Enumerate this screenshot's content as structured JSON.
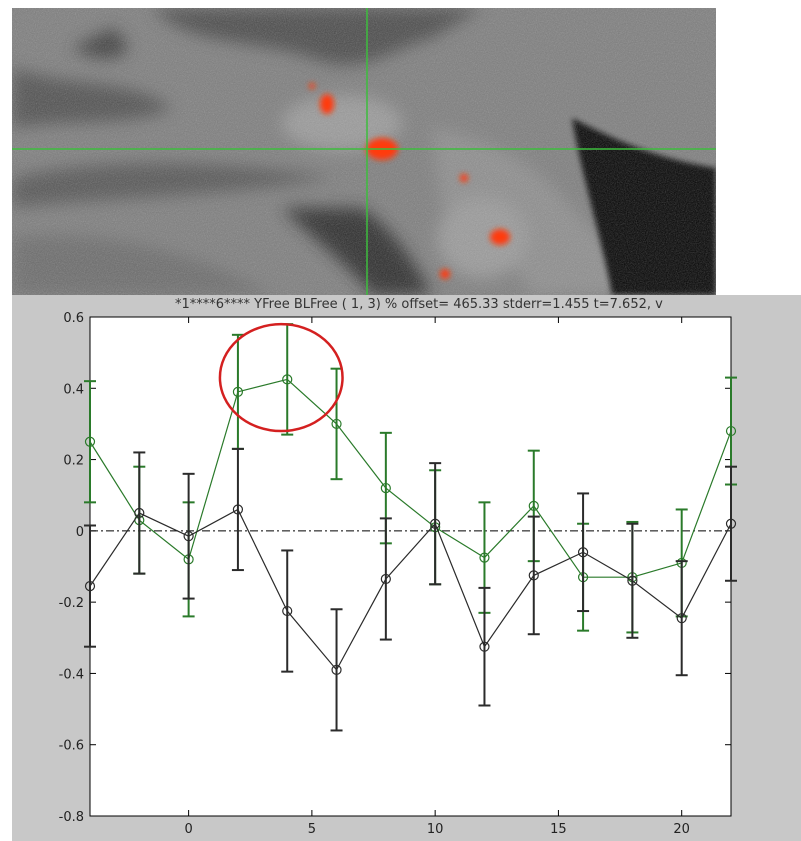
{
  "plot_title": "*1****6**** YFree BLFree ( 1, 3) % offset= 465.33 stderr=1.455  t=7.652, v",
  "colors": {
    "green_series": "#2a7a2a",
    "black_series": "#2b2b2b",
    "highlight_circle": "#d42020",
    "activation": "#ff3a10",
    "crosshair": "#3dbd3d"
  },
  "chart_data": {
    "type": "line",
    "xlim": [
      -4,
      22
    ],
    "ylim": [
      -0.8,
      0.6
    ],
    "xticks": [
      0,
      5,
      10,
      15,
      20
    ],
    "yticks": [
      -0.8,
      -0.6,
      -0.4,
      -0.2,
      0,
      0.2,
      0.4,
      0.6
    ],
    "x": [
      -4,
      -2,
      0,
      2,
      4,
      6,
      8,
      10,
      12,
      14,
      16,
      18,
      20,
      22
    ],
    "series": [
      {
        "color": "#2a7a2a",
        "values": [
          0.25,
          0.03,
          -0.08,
          0.39,
          0.425,
          0.3,
          0.12,
          0.01,
          -0.075,
          0.07,
          -0.13,
          -0.13,
          -0.09,
          0.28
        ],
        "errors": [
          0.17,
          0.15,
          0.16,
          0.16,
          0.155,
          0.155,
          0.155,
          0.16,
          0.155,
          0.155,
          0.15,
          0.155,
          0.15,
          0.15
        ]
      },
      {
        "color": "#2b2b2b",
        "values": [
          -0.155,
          0.05,
          -0.015,
          0.06,
          -0.225,
          -0.39,
          -0.135,
          0.02,
          -0.325,
          -0.125,
          -0.06,
          -0.14,
          -0.245,
          0.02
        ],
        "errors": [
          0.17,
          0.17,
          0.175,
          0.17,
          0.17,
          0.17,
          0.17,
          0.17,
          0.165,
          0.165,
          0.165,
          0.16,
          0.16,
          0.16
        ]
      }
    ],
    "zero_line": true,
    "annotation": {
      "type": "circle",
      "around_x": [
        2,
        6
      ],
      "around_y": [
        0.28,
        0.58
      ]
    }
  }
}
